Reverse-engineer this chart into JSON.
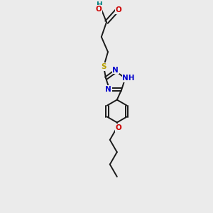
{
  "background_color": "#ebebeb",
  "figsize": [
    3.0,
    3.0
  ],
  "dpi": 100,
  "bond_color": "#1a1a1a",
  "S_color": "#b8a000",
  "N_color": "#0000cc",
  "O_color": "#cc0000",
  "H_color": "#008080",
  "font_size": 7.5,
  "lw": 1.4,
  "xlim": [
    -1.2,
    1.2
  ],
  "ylim": [
    -4.2,
    3.2
  ]
}
